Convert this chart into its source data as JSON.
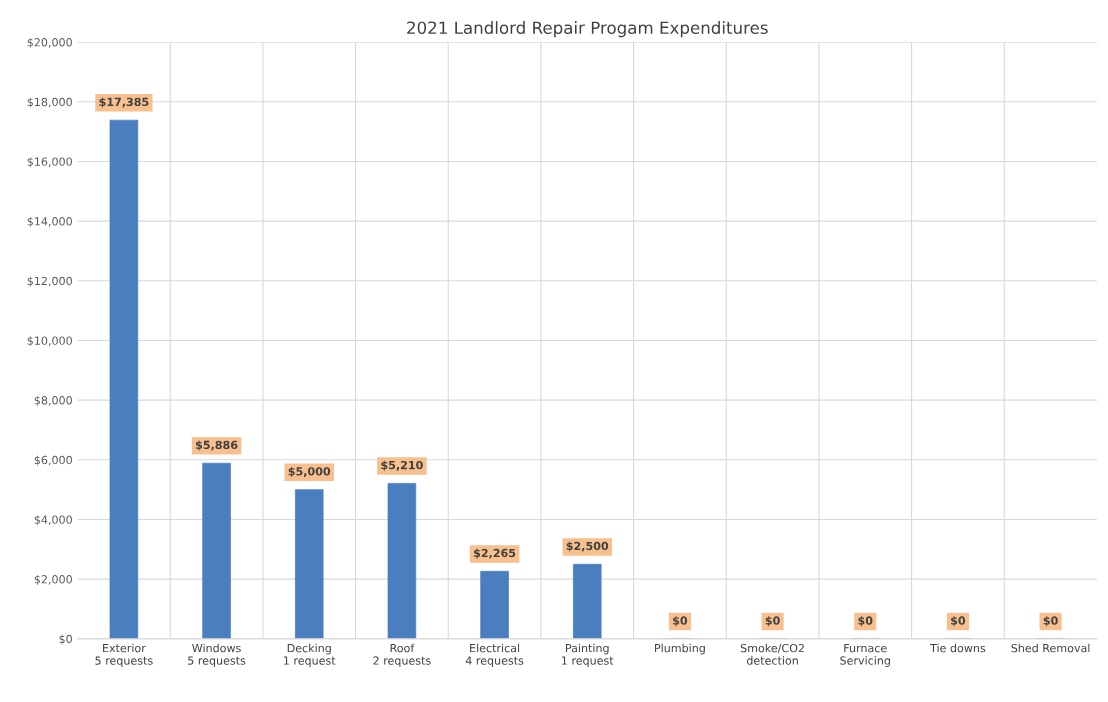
{
  "chart_data": {
    "type": "bar",
    "title": "2021 Landlord Repair Progam Expenditures",
    "categories": [
      "Exterior\n5 requests",
      "Windows\n5 requests",
      "Decking\n1 request",
      "Roof\n2 requests",
      "Electrical\n4 requests",
      "Painting\n1 request",
      "Plumbing",
      "Smoke/CO2\ndetection",
      "Furnace\nServicing",
      "Tie downs",
      "Shed Removal"
    ],
    "values": [
      17385,
      5886,
      5000,
      5210,
      2265,
      2500,
      0,
      0,
      0,
      0,
      0
    ],
    "value_labels": [
      "$17,385",
      "$5,886",
      "$5,000",
      "$5,210",
      "$2,265",
      "$2,500",
      "$0",
      "$0",
      "$0",
      "$0",
      "$0"
    ],
    "color": "#4a7ebf",
    "ylim": [
      0,
      20000
    ],
    "yticks": [
      {
        "value": 0,
        "label": "$0"
      },
      {
        "value": 2000,
        "label": "$2,000"
      },
      {
        "value": 4000,
        "label": "$4,000"
      },
      {
        "value": 6000,
        "label": "$6,000"
      },
      {
        "value": 8000,
        "label": "$8,000"
      },
      {
        "value": 10000,
        "label": "$10,000"
      },
      {
        "value": 12000,
        "label": "$12,000"
      },
      {
        "value": 14000,
        "label": "$14,000"
      },
      {
        "value": 16000,
        "label": "$16,000"
      },
      {
        "value": 18000,
        "label": "$18,000"
      },
      {
        "value": 20000,
        "label": "$20,000"
      }
    ],
    "grid": true
  }
}
